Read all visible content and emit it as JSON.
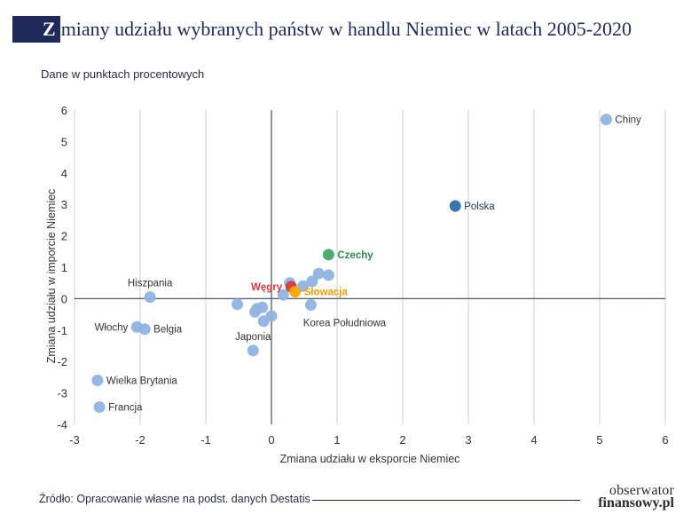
{
  "header": {
    "title_initial": "Z",
    "title_rest": "miany udziału wybranych państw w handlu Niemiec w latach 2005-2020",
    "subtitle": "Dane w punktach procentowych"
  },
  "footer": {
    "source": "Źródło: Opracowanie własne na podst. danych Destatis",
    "logo_line1": "obserwator",
    "logo_line2": "finansowy.pl"
  },
  "colors": {
    "default_point": "#8fb4e0",
    "polska": "#2f6fa8",
    "czechy": "#44a868",
    "wegry": "#d83a3a",
    "slowacja": "#f2a900",
    "axis": "#4a5a7a",
    "grid": "#c9ccd3"
  },
  "chart_data": {
    "type": "scatter",
    "title": "Zmiany udziału wybranych państw w handlu Niemiec w latach 2005-2020",
    "subtitle": "Dane w punktach procentowych",
    "xlabel": "Zmiana udziału w eksporcie Niemiec",
    "ylabel": "Zmiana udziału w imporcie Niemiec",
    "xlim": [
      -3,
      6
    ],
    "ylim": [
      -4,
      6
    ],
    "xticks": [
      -3,
      -2,
      -1,
      0,
      1,
      2,
      3,
      4,
      5,
      6
    ],
    "yticks": [
      -4,
      -3,
      -2,
      -1,
      0,
      1,
      2,
      3,
      4,
      5,
      6
    ],
    "grid": "vertical",
    "points": [
      {
        "label": "Chiny",
        "x": 5.1,
        "y": 5.7,
        "color": "#8fb4e0",
        "label_pos": "right",
        "label_color": "#333333",
        "bold": false
      },
      {
        "label": "Polska",
        "x": 2.8,
        "y": 2.95,
        "color": "#2f6fa8",
        "label_pos": "right",
        "label_color": "#1f3a6a",
        "bold": false
      },
      {
        "label": "Czechy",
        "x": 0.87,
        "y": 1.4,
        "color": "#44a868",
        "label_pos": "right",
        "label_color": "#2e8a50",
        "bold": true
      },
      {
        "label": "Węgry",
        "x": 0.3,
        "y": 0.38,
        "color": "#d83a3a",
        "label_pos": "left",
        "label_color": "#d83a3a",
        "bold": true
      },
      {
        "label": "Słowacja",
        "x": 0.36,
        "y": 0.22,
        "color": "#f2a900",
        "label_pos": "right",
        "label_color": "#e9a000",
        "bold": true
      },
      {
        "label": "Korea Południowa",
        "x": 0.6,
        "y": -0.2,
        "color": "#8fb4e0",
        "label_pos": "below",
        "label_color": "#333333",
        "bold": false
      },
      {
        "label": "Hiszpania",
        "x": -1.85,
        "y": 0.05,
        "color": "#8fb4e0",
        "label_pos": "above",
        "label_color": "#333333",
        "bold": false
      },
      {
        "label": "Włochy",
        "x": -2.05,
        "y": -0.9,
        "color": "#8fb4e0",
        "label_pos": "left",
        "label_color": "#333333",
        "bold": false
      },
      {
        "label": "Belgia",
        "x": -1.93,
        "y": -0.97,
        "color": "#8fb4e0",
        "label_pos": "right",
        "label_color": "#333333",
        "bold": false
      },
      {
        "label": "Japonia",
        "x": -0.28,
        "y": -1.65,
        "color": "#8fb4e0",
        "label_pos": "above",
        "label_color": "#333333",
        "bold": false
      },
      {
        "label": "Wielka Brytania",
        "x": -2.65,
        "y": -2.6,
        "color": "#8fb4e0",
        "label_pos": "right",
        "label_color": "#333333",
        "bold": false
      },
      {
        "label": "Francja",
        "x": -2.62,
        "y": -3.45,
        "color": "#8fb4e0",
        "label_pos": "right",
        "label_color": "#333333",
        "bold": false
      },
      {
        "label": "",
        "x": 0.28,
        "y": 0.5,
        "color": "#8fb4e0"
      },
      {
        "label": "",
        "x": 0.48,
        "y": 0.4,
        "color": "#8fb4e0"
      },
      {
        "label": "",
        "x": 0.62,
        "y": 0.55,
        "color": "#8fb4e0"
      },
      {
        "label": "",
        "x": 0.72,
        "y": 0.8,
        "color": "#8fb4e0"
      },
      {
        "label": "",
        "x": 0.87,
        "y": 0.75,
        "color": "#8fb4e0"
      },
      {
        "label": "",
        "x": 0.18,
        "y": 0.12,
        "color": "#8fb4e0"
      },
      {
        "label": "",
        "x": -0.52,
        "y": -0.18,
        "color": "#8fb4e0"
      },
      {
        "label": "",
        "x": -0.22,
        "y": -0.32,
        "color": "#8fb4e0"
      },
      {
        "label": "",
        "x": -0.14,
        "y": -0.28,
        "color": "#8fb4e0"
      },
      {
        "label": "",
        "x": -0.25,
        "y": -0.42,
        "color": "#8fb4e0"
      },
      {
        "label": "",
        "x": 0.0,
        "y": -0.55,
        "color": "#8fb4e0"
      },
      {
        "label": "",
        "x": -0.12,
        "y": -0.72,
        "color": "#8fb4e0"
      }
    ]
  }
}
